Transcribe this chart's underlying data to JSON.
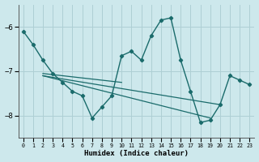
{
  "background_color": "#cde8ec",
  "grid_color": "#aecfd4",
  "line_color": "#1a6b6b",
  "xlabel": "Humidex (Indice chaleur)",
  "ylim": [
    -8.5,
    -5.5
  ],
  "xlim": [
    -0.5,
    23.5
  ],
  "yticks": [
    -8,
    -7,
    -6
  ],
  "xticks": [
    0,
    1,
    2,
    3,
    4,
    5,
    6,
    7,
    8,
    9,
    10,
    11,
    12,
    13,
    14,
    15,
    16,
    17,
    18,
    19,
    20,
    21,
    22,
    23
  ],
  "figsize": [
    3.2,
    2.0
  ],
  "dpi": 100,
  "curve1_x": [
    0,
    1,
    2,
    3,
    4,
    5,
    6,
    7,
    8,
    9,
    10,
    11,
    12,
    13,
    14,
    15,
    16,
    17,
    18,
    19,
    20,
    21,
    22,
    23
  ],
  "curve1_y": [
    -6.1,
    -6.4,
    -6.75,
    -7.05,
    -7.25,
    -7.45,
    -7.55,
    -8.05,
    -7.8,
    -7.55,
    -6.65,
    -6.55,
    -6.75,
    -6.2,
    -5.85,
    -5.8,
    -6.75,
    -7.45,
    -8.15,
    -8.1,
    -7.75,
    -7.1,
    -7.2,
    -7.3
  ],
  "line2_x": [
    2,
    10
  ],
  "line2_y": [
    -7.05,
    -7.25
  ],
  "line3_x": [
    2,
    19
  ],
  "line3_y": [
    -7.1,
    -8.05
  ],
  "line4_x": [
    2,
    20
  ],
  "line4_y": [
    -7.1,
    -7.75
  ]
}
